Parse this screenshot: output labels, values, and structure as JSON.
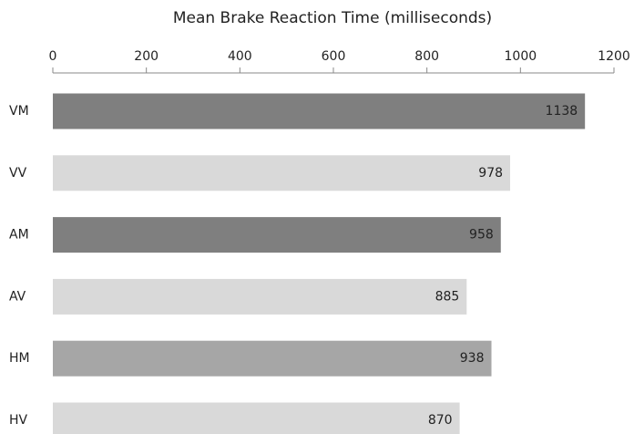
{
  "chart_data": {
    "type": "bar",
    "orientation": "horizontal",
    "title": "Mean Brake Reaction Time (milliseconds)",
    "categories": [
      "VM",
      "VV",
      "AM",
      "AV",
      "HM",
      "HV"
    ],
    "values": [
      1138,
      978,
      958,
      885,
      938,
      870
    ],
    "colors": [
      "#7f7f7f",
      "#d9d9d9",
      "#7f7f7f",
      "#d9d9d9",
      "#a6a6a6",
      "#d9d9d9"
    ],
    "xlim": [
      0,
      1200
    ],
    "xticks": [
      0,
      200,
      400,
      600,
      800,
      1000,
      1200
    ],
    "axis_position": "top",
    "grid": false
  }
}
